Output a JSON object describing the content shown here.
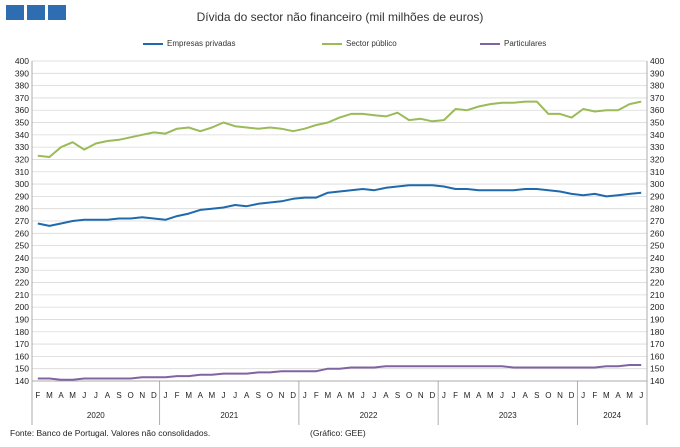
{
  "title": "Dívida do sector não financeiro (mil milhões de euros)",
  "footer": {
    "source": "Fonte: Banco de Portugal. Valores não consolidados.",
    "credit": "(Gráfico: GEE)"
  },
  "logo_colors": [
    "#2f6db3",
    "#2f6db3",
    "#2f6db3"
  ],
  "chart_data": {
    "type": "line",
    "grid": true,
    "legend_position": "top",
    "ylim": [
      140,
      400
    ],
    "ytick_step": 10,
    "categories": [
      "F",
      "M",
      "A",
      "M",
      "J",
      "J",
      "A",
      "S",
      "O",
      "N",
      "D",
      "J",
      "F",
      "M",
      "A",
      "M",
      "J",
      "J",
      "A",
      "S",
      "O",
      "N",
      "D",
      "J",
      "F",
      "M",
      "A",
      "M",
      "J",
      "J",
      "A",
      "S",
      "O",
      "N",
      "D",
      "J",
      "F",
      "M",
      "A",
      "M",
      "J",
      "J",
      "A",
      "S",
      "O",
      "N",
      "D",
      "J",
      "F",
      "M",
      "A",
      "M",
      "J"
    ],
    "year_groups": [
      {
        "label": "2020",
        "start": 0,
        "count": 11
      },
      {
        "label": "2021",
        "start": 11,
        "count": 12
      },
      {
        "label": "2022",
        "start": 23,
        "count": 12
      },
      {
        "label": "2023",
        "start": 35,
        "count": 12
      },
      {
        "label": "2024",
        "start": 47,
        "count": 6
      }
    ],
    "series": [
      {
        "name": "Empresas privadas",
        "color": "#1f6aad",
        "values": [
          268,
          266,
          268,
          270,
          271,
          271,
          271,
          272,
          272,
          273,
          272,
          271,
          274,
          276,
          279,
          280,
          281,
          283,
          282,
          284,
          285,
          286,
          288,
          289,
          289,
          293,
          294,
          295,
          296,
          295,
          297,
          298,
          299,
          299,
          299,
          298,
          296,
          296,
          295,
          295,
          295,
          295,
          296,
          296,
          295,
          294,
          292,
          291,
          292,
          290,
          291,
          292,
          293
        ]
      },
      {
        "name": "Sector público",
        "color": "#9bbb59",
        "values": [
          323,
          322,
          330,
          334,
          328,
          333,
          335,
          336,
          338,
          340,
          342,
          341,
          345,
          346,
          343,
          346,
          350,
          347,
          346,
          345,
          346,
          345,
          343,
          345,
          348,
          350,
          354,
          357,
          357,
          356,
          355,
          358,
          352,
          353,
          351,
          352,
          361,
          360,
          363,
          365,
          366,
          366,
          367,
          367,
          357,
          357,
          354,
          361,
          359,
          360,
          360,
          365,
          367
        ]
      },
      {
        "name": "Particulares",
        "color": "#8064a2",
        "values": [
          142,
          142,
          141,
          141,
          142,
          142,
          142,
          142,
          142,
          143,
          143,
          143,
          144,
          144,
          145,
          145,
          146,
          146,
          146,
          147,
          147,
          148,
          148,
          148,
          148,
          150,
          150,
          151,
          151,
          151,
          152,
          152,
          152,
          152,
          152,
          152,
          152,
          152,
          152,
          152,
          152,
          151,
          151,
          151,
          151,
          151,
          151,
          151,
          151,
          152,
          152,
          153,
          153
        ]
      }
    ]
  }
}
